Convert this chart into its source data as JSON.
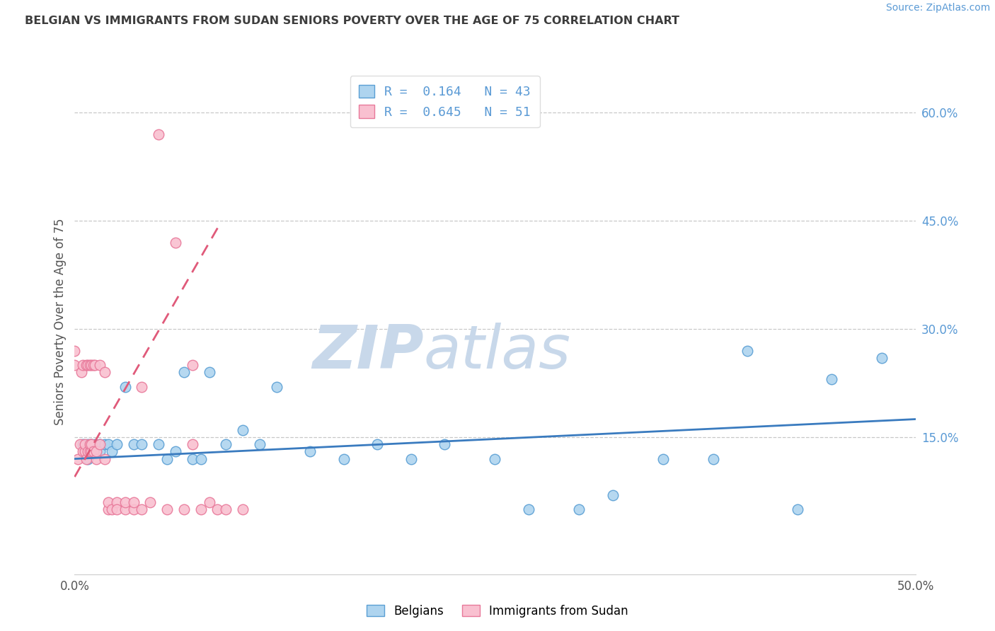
{
  "title": "BELGIAN VS IMMIGRANTS FROM SUDAN SENIORS POVERTY OVER THE AGE OF 75 CORRELATION CHART",
  "source": "Source: ZipAtlas.com",
  "ylabel": "Seniors Poverty Over the Age of 75",
  "xlim": [
    0.0,
    0.5
  ],
  "ylim": [
    -0.04,
    0.66
  ],
  "watermark_zip": "ZIP",
  "watermark_atlas": "atlas",
  "legend_label1": "R =  0.164   N = 43",
  "legend_label2": "R =  0.645   N = 51",
  "legend_footer1": "Belgians",
  "legend_footer2": "Immigrants from Sudan",
  "blue_fill_color": "#aed4ef",
  "blue_edge_color": "#5a9fd4",
  "blue_line_color": "#3a7bbf",
  "pink_fill_color": "#f9c0d0",
  "pink_edge_color": "#e8799a",
  "pink_line_color": "#e05a7a",
  "grid_color": "#c8c8c8",
  "background_color": "#ffffff",
  "title_color": "#3d3d3d",
  "source_color": "#5a9ad5",
  "right_tick_color": "#5a9ad5",
  "ytick_vals": [
    0.15,
    0.3,
    0.45,
    0.6
  ],
  "ytick_labels": [
    "15.0%",
    "30.0%",
    "45.0%",
    "60.0%"
  ],
  "blue_scatter_x": [
    0.005,
    0.007,
    0.008,
    0.008,
    0.01,
    0.01,
    0.012,
    0.013,
    0.015,
    0.015,
    0.018,
    0.02,
    0.022,
    0.025,
    0.03,
    0.035,
    0.04,
    0.05,
    0.055,
    0.06,
    0.065,
    0.07,
    0.075,
    0.08,
    0.09,
    0.1,
    0.11,
    0.12,
    0.14,
    0.16,
    0.18,
    0.2,
    0.22,
    0.25,
    0.27,
    0.3,
    0.32,
    0.35,
    0.38,
    0.4,
    0.43,
    0.45,
    0.48
  ],
  "blue_scatter_y": [
    0.14,
    0.13,
    0.14,
    0.12,
    0.14,
    0.13,
    0.14,
    0.13,
    0.14,
    0.13,
    0.14,
    0.14,
    0.13,
    0.14,
    0.22,
    0.14,
    0.14,
    0.14,
    0.12,
    0.13,
    0.24,
    0.12,
    0.12,
    0.24,
    0.14,
    0.16,
    0.14,
    0.22,
    0.13,
    0.12,
    0.14,
    0.12,
    0.14,
    0.12,
    0.05,
    0.05,
    0.07,
    0.12,
    0.12,
    0.27,
    0.05,
    0.23,
    0.26
  ],
  "pink_scatter_x": [
    0.0,
    0.0,
    0.002,
    0.003,
    0.004,
    0.005,
    0.005,
    0.006,
    0.006,
    0.007,
    0.007,
    0.008,
    0.008,
    0.009,
    0.009,
    0.009,
    0.01,
    0.01,
    0.01,
    0.011,
    0.011,
    0.012,
    0.013,
    0.013,
    0.015,
    0.015,
    0.018,
    0.018,
    0.02,
    0.02,
    0.022,
    0.025,
    0.025,
    0.03,
    0.03,
    0.035,
    0.035,
    0.04,
    0.04,
    0.045,
    0.05,
    0.055,
    0.06,
    0.065,
    0.07,
    0.07,
    0.075,
    0.08,
    0.085,
    0.09,
    0.1
  ],
  "pink_scatter_y": [
    0.25,
    0.27,
    0.12,
    0.14,
    0.24,
    0.13,
    0.25,
    0.13,
    0.14,
    0.12,
    0.25,
    0.13,
    0.25,
    0.13,
    0.14,
    0.25,
    0.13,
    0.14,
    0.25,
    0.13,
    0.25,
    0.25,
    0.12,
    0.13,
    0.14,
    0.25,
    0.12,
    0.24,
    0.05,
    0.06,
    0.05,
    0.06,
    0.05,
    0.05,
    0.06,
    0.05,
    0.06,
    0.22,
    0.05,
    0.06,
    0.57,
    0.05,
    0.42,
    0.05,
    0.25,
    0.14,
    0.05,
    0.06,
    0.05,
    0.05,
    0.05
  ],
  "blue_trend_x": [
    0.0,
    0.5
  ],
  "blue_trend_y": [
    0.12,
    0.175
  ],
  "pink_trend_x": [
    0.0,
    0.085
  ],
  "pink_trend_y": [
    0.095,
    0.44
  ]
}
